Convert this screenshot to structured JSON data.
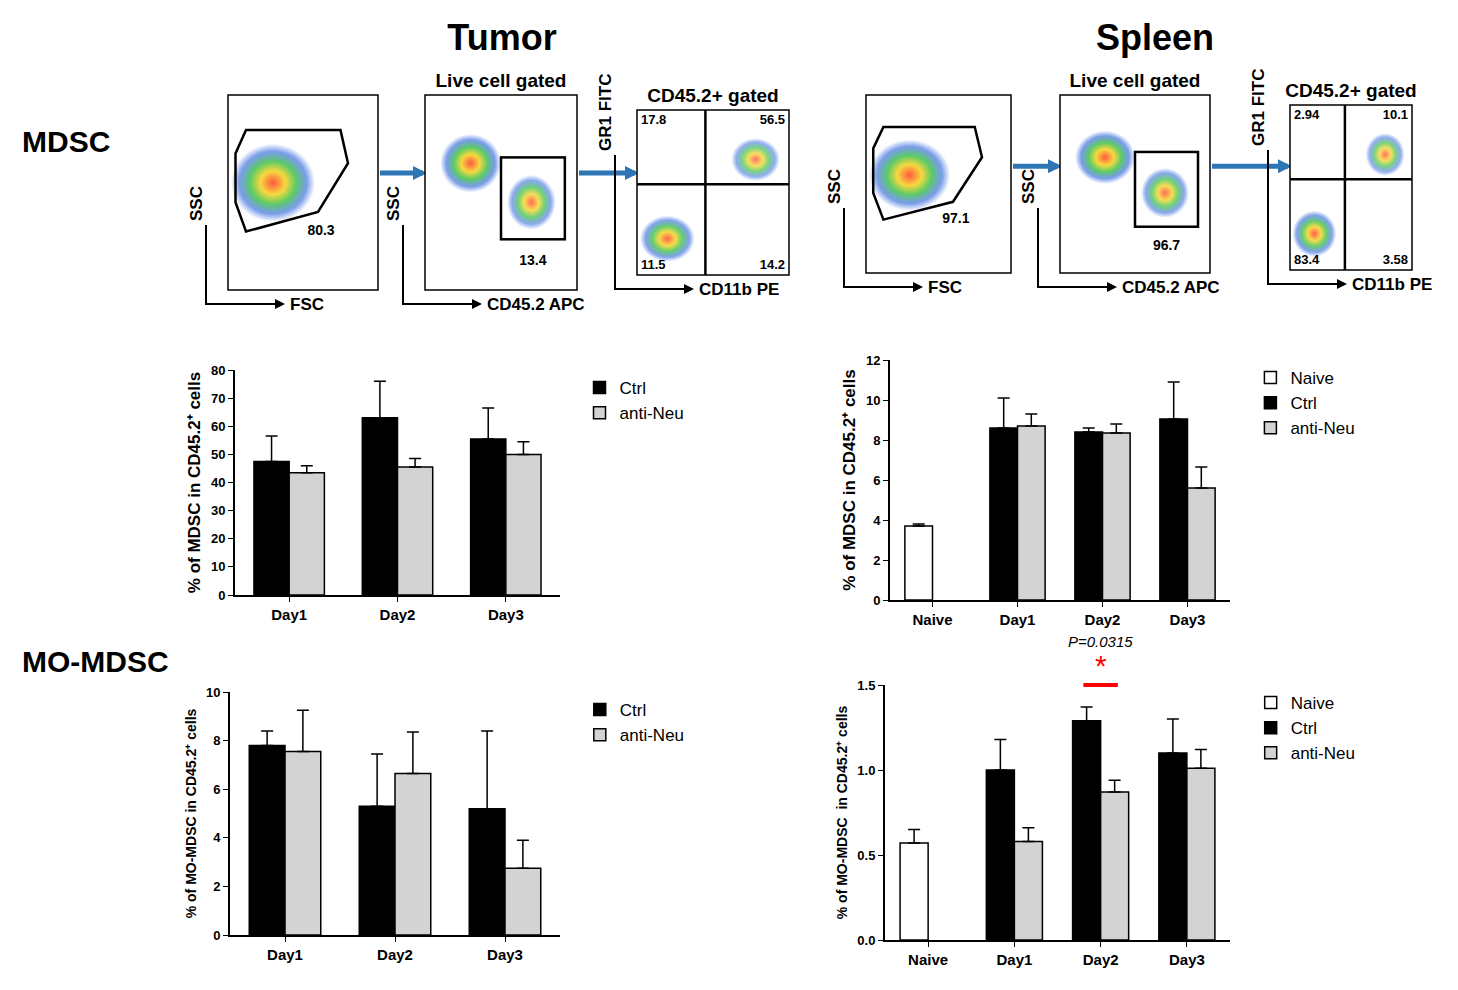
{
  "headers": {
    "columns": [
      "Tumor",
      "Spleen"
    ],
    "rows": [
      "MDSC",
      "MO-MDSC"
    ]
  },
  "flow": [
    {
      "panels": [
        {
          "x_label": "FSC",
          "y_label": "SSC",
          "gate": 80.3
        },
        {
          "title": "Live cell gated",
          "x_label": "CD45.2 APC",
          "y_label": "SSC",
          "gate": 13.4
        },
        {
          "title": "CD45.2+ gated",
          "x_label": "CD11b PE",
          "y_label": "GR1 FITC",
          "quadrants": [
            17.8,
            56.5,
            11.5,
            14.2
          ]
        }
      ]
    },
    {
      "panels": [
        {
          "x_label": "FSC",
          "y_label": "SSC",
          "gate": 97.1
        },
        {
          "title": "Live cell gated",
          "x_label": "CD45.2 APC",
          "y_label": "SSC",
          "gate": 96.7
        },
        {
          "title": "CD45.2+ gated",
          "x_label": "CD11b PE",
          "y_label": "GR1 FITC",
          "quadrants": [
            2.94,
            10.1,
            83.4,
            3.58
          ]
        }
      ]
    }
  ],
  "chart_data": [
    {
      "type": "bar",
      "categories": [
        "Day1",
        "Day2",
        "Day3"
      ],
      "y_label": "% of MDSC in CD45.2⁺ cells",
      "ylim": [
        0,
        80
      ],
      "yticks": [
        0,
        10,
        20,
        30,
        40,
        50,
        60,
        70,
        80
      ],
      "legend": "right",
      "series": [
        {
          "name": "Ctrl",
          "color": "#000000",
          "values": [
            47.5,
            63,
            55.5
          ],
          "errors": [
            9,
            13,
            11
          ]
        },
        {
          "name": "anti-Neu",
          "color": "#d3d3d3",
          "values": [
            43.5,
            45.5,
            50
          ],
          "errors": [
            2.5,
            3,
            4.5
          ]
        }
      ]
    },
    {
      "type": "bar",
      "categories": [
        "Naive",
        "Day1",
        "Day2",
        "Day3"
      ],
      "y_label": "% of MDSC in CD45.2⁺ cells",
      "ylim": [
        0,
        12
      ],
      "yticks": [
        0,
        2,
        4,
        6,
        8,
        10,
        12
      ],
      "legend": "right",
      "series": [
        {
          "name": "Naive",
          "color": "#ffffff",
          "values": [
            3.7,
            null,
            null,
            null
          ],
          "errors": [
            0.1,
            null,
            null,
            null
          ]
        },
        {
          "name": "Ctrl",
          "color": "#000000",
          "values": [
            null,
            8.6,
            8.4,
            9.05
          ],
          "errors": [
            null,
            1.5,
            0.2,
            1.85
          ]
        },
        {
          "name": "anti-Neu",
          "color": "#d3d3d3",
          "values": [
            null,
            8.7,
            8.35,
            5.6
          ],
          "errors": [
            null,
            0.6,
            0.45,
            1.05
          ]
        }
      ]
    },
    {
      "type": "bar",
      "categories": [
        "Day1",
        "Day2",
        "Day3"
      ],
      "y_label": "% of MO-MDSC in CD45.2⁺ cells",
      "ylim": [
        0,
        10
      ],
      "yticks": [
        0,
        2,
        4,
        6,
        8,
        10
      ],
      "legend": "right",
      "series": [
        {
          "name": "Ctrl",
          "color": "#000000",
          "values": [
            7.8,
            5.3,
            5.2
          ],
          "errors": [
            0.6,
            2.15,
            3.2
          ]
        },
        {
          "name": "anti-Neu",
          "color": "#d3d3d3",
          "values": [
            7.55,
            6.65,
            2.75
          ],
          "errors": [
            1.7,
            1.7,
            1.15
          ]
        }
      ]
    },
    {
      "type": "bar",
      "categories": [
        "Naive",
        "Day1",
        "Day2",
        "Day3"
      ],
      "y_label": "% of MO-MDSC  in CD45.2⁺ cells",
      "ylim": [
        0,
        1.5
      ],
      "yticks": [
        {
          "value": 0,
          "label": "0.0"
        },
        0.5,
        {
          "value": 1,
          "label": "1.0"
        },
        1.5
      ],
      "legend": "right",
      "series": [
        {
          "name": "Naive",
          "color": "#ffffff",
          "values": [
            0.57,
            null,
            null,
            null
          ],
          "errors": [
            0.08,
            null,
            null,
            null
          ]
        },
        {
          "name": "Ctrl",
          "color": "#000000",
          "values": [
            null,
            1.0,
            1.29,
            1.1
          ],
          "errors": [
            null,
            0.18,
            0.08,
            0.2
          ]
        },
        {
          "name": "anti-Neu",
          "color": "#d3d3d3",
          "values": [
            null,
            0.58,
            0.87,
            1.01
          ],
          "errors": [
            null,
            0.08,
            0.07,
            0.11
          ]
        }
      ],
      "annotations": [
        {
          "text": "P=0.0315",
          "category": "Day2"
        },
        {
          "text": "*",
          "category": "Day2",
          "color": "#ff0000"
        }
      ]
    }
  ]
}
